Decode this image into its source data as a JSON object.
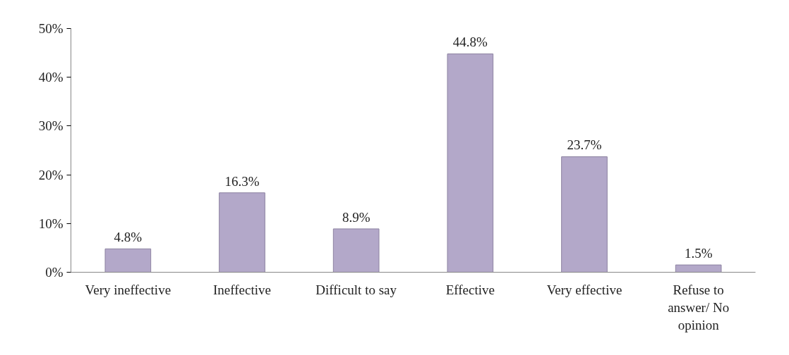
{
  "chart_data": {
    "type": "bar",
    "categories": [
      "Very ineffective",
      "Ineffective",
      "Difficult to say",
      "Effective",
      "Very effective",
      "Refuse to answer/ No opinion"
    ],
    "values": [
      4.8,
      16.3,
      8.9,
      44.8,
      23.7,
      1.5
    ],
    "value_labels": [
      "4.8%",
      "16.3%",
      "8.9%",
      "44.8%",
      "23.7%",
      "1.5%"
    ],
    "color": "#b3a8c9",
    "ylim": [
      0,
      50
    ],
    "yticks": [
      {
        "value": 0,
        "label": "0%"
      },
      {
        "value": 10,
        "label": "10%"
      },
      {
        "value": 20,
        "label": "20%"
      },
      {
        "value": 30,
        "label": "30%"
      },
      {
        "value": 40,
        "label": "40%"
      },
      {
        "value": 50,
        "label": "50%"
      }
    ],
    "data_labels": false
  }
}
